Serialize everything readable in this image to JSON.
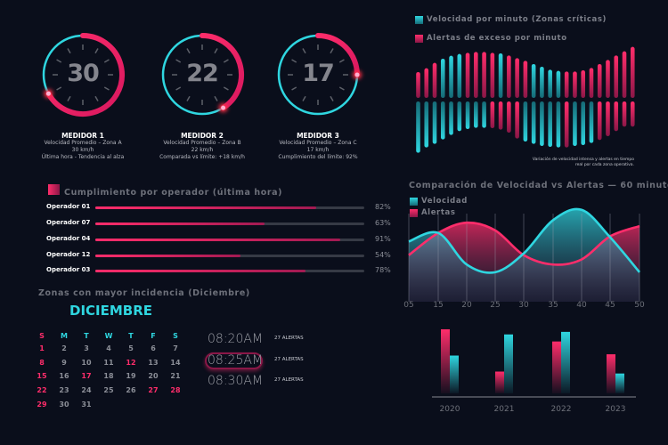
{
  "colors": {
    "background": "#0a0e1b",
    "cyan": "#2fd6e0",
    "pink": "#ff2d6b"
  },
  "gauges": [
    {
      "value": "30",
      "progress": 0.67,
      "title": "MEDIDOR 1",
      "line1": "Velocidad Promedio – Zona A",
      "line2": "30 km/h",
      "line3": "Última hora - Tendencia al alza"
    },
    {
      "value": "22",
      "progress": 0.41,
      "title": "MEDIDOR 2",
      "line1": "Velocidad Promedio – Zona B",
      "line2": "22 km/h",
      "line3": "Comparada vs límite: +18 km/h"
    },
    {
      "value": "17",
      "progress": 0.25,
      "title": "MEDIDOR 3",
      "line1": "Velocidad Promedio – Zona C",
      "line2": "17 km/h",
      "line3": "Cumplimiento del límite: 92%"
    }
  ],
  "operators": {
    "title": "Cumplimiento por operador (última hora)",
    "rows": [
      {
        "name": "Operador 01",
        "pct": "82%",
        "value": 0.82
      },
      {
        "name": "Operador 07",
        "pct": "63%",
        "value": 0.63
      },
      {
        "name": "Operador 04",
        "pct": "91%",
        "value": 0.91
      },
      {
        "name": "Operador 12",
        "pct": "54%",
        "value": 0.54
      },
      {
        "name": "Operador 03",
        "pct": "78%",
        "value": 0.78
      }
    ]
  },
  "calendar": {
    "section_title": "Zonas con mayor incidencia (Diciembre)",
    "month": "DICIEMBRE",
    "weekdays": [
      "S",
      "M",
      "T",
      "W",
      "T",
      "F",
      "S"
    ],
    "highlighted_days": [
      1,
      8,
      12,
      15,
      17,
      22,
      27,
      28,
      29
    ],
    "days_in_month": 31,
    "times": [
      {
        "time": "08:20AM",
        "alerts": "27 ALERTAS",
        "selected": false
      },
      {
        "time": "08:25AM",
        "alerts": "27 ALERTAS",
        "selected": true
      },
      {
        "time": "08:30AM",
        "alerts": "27 ALERTAS",
        "selected": false
      }
    ]
  },
  "chart_data": [
    {
      "type": "bar",
      "legend": [
        "Velocidad por minuto (Zonas críticas)",
        "Alertas de exceso por minuto"
      ],
      "note": "Variación de velocidad intensa y alertas en tiempo real por cada zona operativa.",
      "series": [
        {
          "name": "upper",
          "values": [
            87,
            100,
            118,
            132,
            142,
            148,
            152,
            155,
            155,
            152,
            150,
            143,
            134,
            125,
            114,
            105,
            95,
            91,
            89,
            89,
            93,
            101,
            114,
            128,
            143,
            157,
            172
          ],
          "colors": [
            "p",
            "p",
            "p",
            "c",
            "c",
            "c",
            "p",
            "p",
            "p",
            "p",
            "c",
            "p",
            "p",
            "p",
            "c",
            "c",
            "c",
            "c",
            "p",
            "p",
            "p",
            "p",
            "p",
            "p",
            "p",
            "p",
            "p"
          ]
        },
        {
          "name": "lower",
          "values": [
            173,
            155,
            143,
            128,
            113,
            100,
            93,
            89,
            89,
            90,
            95,
            105,
            125,
            135,
            143,
            150,
            153,
            155,
            155,
            150,
            147,
            140,
            130,
            117,
            100,
            85,
            85
          ],
          "colors": [
            "c",
            "c",
            "c",
            "c",
            "c",
            "c",
            "c",
            "c",
            "c",
            "p",
            "p",
            "p",
            "p",
            "c",
            "c",
            "c",
            "c",
            "c",
            "p",
            "c",
            "c",
            "c",
            "p",
            "p",
            "p",
            "p",
            "p"
          ]
        }
      ]
    },
    {
      "type": "area",
      "title": "Comparación de Velocidad vs Alertas — 60 minutos",
      "categories": [
        "05",
        "15",
        "20",
        "25",
        "30",
        "35",
        "40",
        "45",
        "50"
      ],
      "series": [
        {
          "name": "Velocidad",
          "values": [
            58,
            68,
            31,
            22,
            44,
            83,
            95,
            63,
            22
          ]
        },
        {
          "name": "Alertas",
          "values": [
            42,
            68,
            80,
            71,
            42,
            31,
            37,
            64,
            76
          ]
        }
      ],
      "ylim": [
        0,
        100
      ],
      "grid": "vertical"
    },
    {
      "type": "bar",
      "categories": [
        "2020",
        "2021",
        "2022",
        "2023"
      ],
      "series": [
        {
          "values": [
            100,
            34,
            81,
            61
          ],
          "color": "#ff2d6b"
        },
        {
          "values": [
            59,
            92,
            96,
            31
          ],
          "color": "#2fd6e0"
        }
      ]
    }
  ]
}
